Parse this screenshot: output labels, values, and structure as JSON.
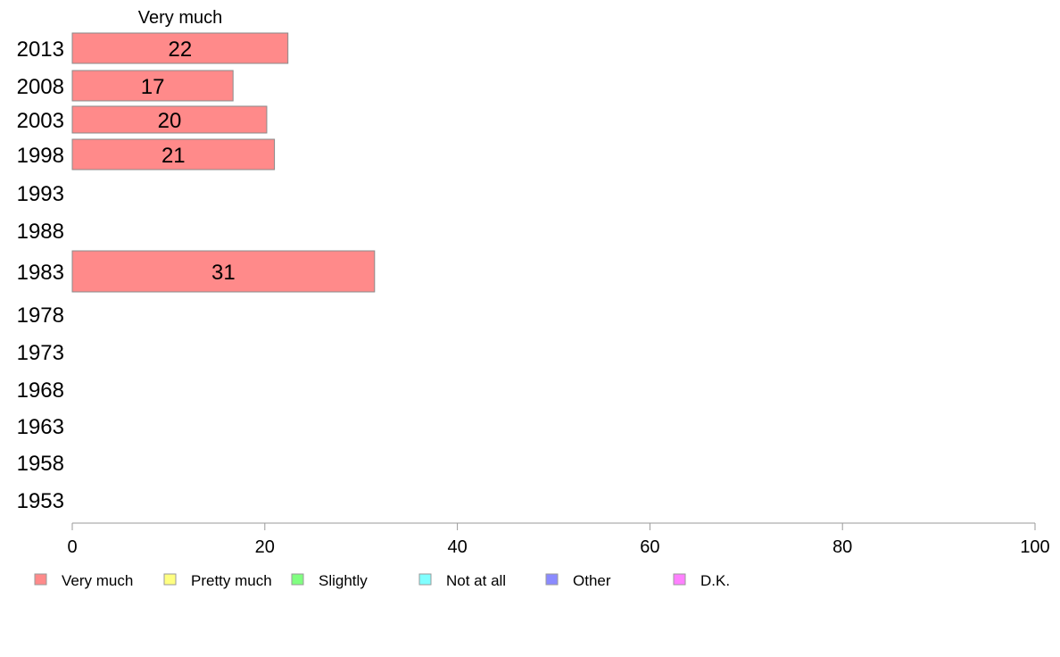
{
  "chart_data": {
    "type": "bar",
    "orientation": "horizontal",
    "title": "",
    "xlabel": "",
    "ylabel": "",
    "xlim": [
      0,
      100
    ],
    "xticks": [
      0,
      20,
      40,
      60,
      80,
      100
    ],
    "grid": false,
    "legend_placement": "bottom",
    "categories": [
      "2013",
      "2008",
      "2003",
      "1998",
      "1993",
      "1988",
      "1983",
      "1978",
      "1973",
      "1968",
      "1963",
      "1958",
      "1953"
    ],
    "series_title": "Very much",
    "series": [
      {
        "name": "Very much",
        "color": "#ff8a8a",
        "values": [
          22.4,
          16.7,
          20.2,
          21.0,
          null,
          null,
          31.4,
          null,
          null,
          null,
          null,
          null,
          null
        ],
        "labels": [
          "22",
          "17",
          "20",
          "21",
          "",
          "",
          "31",
          "",
          "",
          "",
          "",
          "",
          ""
        ]
      }
    ],
    "legend": [
      {
        "label": "Very much",
        "color": "#ff8a8a"
      },
      {
        "label": "Pretty much",
        "color": "#ffff80"
      },
      {
        "label": "Slightly",
        "color": "#80ff80"
      },
      {
        "label": "Not at all",
        "color": "#80ffff"
      },
      {
        "label": "Other",
        "color": "#8a8aff"
      },
      {
        "label": "D.K.",
        "color": "#ff80ff"
      }
    ]
  }
}
